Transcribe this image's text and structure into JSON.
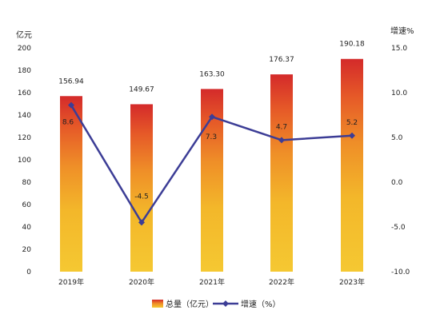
{
  "chart_data": {
    "type": "bar+line",
    "categories": [
      "2019年",
      "2020年",
      "2021年",
      "2022年",
      "2023年"
    ],
    "series": [
      {
        "name": "总量（亿元）",
        "type": "bar",
        "axis": "left",
        "values": [
          156.94,
          149.67,
          163.3,
          176.37,
          190.18
        ],
        "labels": [
          "156.94",
          "149.67",
          "163.30",
          "176.37",
          "190.18"
        ]
      },
      {
        "name": "增速（%）",
        "type": "line",
        "axis": "right",
        "values": [
          8.6,
          -4.5,
          7.3,
          4.7,
          5.2
        ],
        "labels": [
          "8.6",
          "-4.5",
          "7.3",
          "4.7",
          "5.2"
        ]
      }
    ],
    "left_axis": {
      "unit": "亿元",
      "ticks": [
        "0",
        "20",
        "40",
        "60",
        "80",
        "100",
        "120",
        "140",
        "160",
        "180",
        "200"
      ],
      "ylim": [
        0,
        200
      ]
    },
    "right_axis": {
      "unit": "增速%",
      "ticks": [
        "-10.0",
        "-5.0",
        "0.0",
        "5.0",
        "10.0",
        "15.0"
      ],
      "ylim": [
        -10,
        15
      ]
    },
    "legend_position": "bottom",
    "grid": false,
    "colors": {
      "bar_bottom": "#f4c531",
      "bar_top": "#d42a2a",
      "line": "#3c3d96"
    }
  }
}
